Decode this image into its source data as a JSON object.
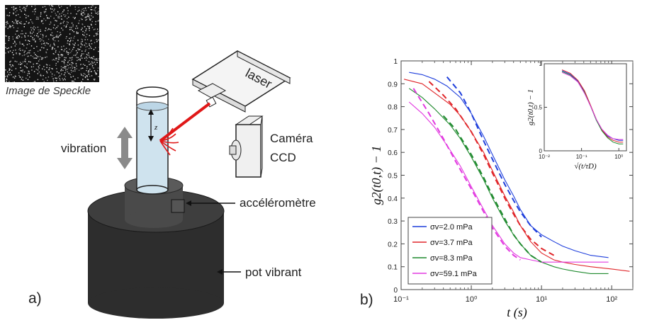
{
  "setup": {
    "speckle_caption": "Image de Speckle",
    "laser_label": "laser",
    "camera_label_line1": "Caméra",
    "camera_label_line2": "CCD",
    "vibration_label": "vibration",
    "z_label": "z",
    "accelerometer_label": "accéléromètre",
    "shaker_label": "pot vibrant",
    "panel_label": "a)"
  },
  "colors": {
    "blue": "#1f3fdc",
    "red": "#e0262a",
    "green": "#1f8a2e",
    "magenta": "#e23ae0"
  },
  "chart_data": {
    "panel_label": "b)",
    "main": {
      "type": "line",
      "xscale": "log",
      "xlim": [
        0.1,
        200
      ],
      "ylim": [
        0,
        1
      ],
      "xlabel": "t (s)",
      "ylabel": "g2(t0,t) − 1",
      "xticks": [
        "10⁻¹",
        "10⁰",
        "10¹",
        "10²"
      ],
      "yticks": [
        "0",
        "0.1",
        "0.2",
        "0.3",
        "0.4",
        "0.5",
        "0.6",
        "0.7",
        "0.8",
        "0.9",
        "1"
      ],
      "legend_position": "bottom-left",
      "series": [
        {
          "name": "σv=2.0 mPa",
          "color": "#1f3fdc",
          "x": [
            0.13,
            0.2,
            0.3,
            0.45,
            0.7,
            1,
            1.5,
            2,
            3,
            4,
            5,
            7,
            10,
            15,
            20,
            30,
            50,
            90
          ],
          "y": [
            0.95,
            0.94,
            0.92,
            0.89,
            0.84,
            0.77,
            0.67,
            0.59,
            0.48,
            0.41,
            0.35,
            0.28,
            0.24,
            0.21,
            0.19,
            0.17,
            0.15,
            0.14
          ]
        },
        {
          "name": "σv=3.7 mPa",
          "color": "#e0262a",
          "x": [
            0.11,
            0.2,
            0.3,
            0.5,
            0.7,
            1,
            1.5,
            2,
            3,
            4,
            5,
            7,
            10,
            15,
            20,
            30,
            50,
            100,
            180
          ],
          "y": [
            0.92,
            0.9,
            0.86,
            0.81,
            0.76,
            0.69,
            0.6,
            0.52,
            0.41,
            0.34,
            0.28,
            0.21,
            0.16,
            0.13,
            0.12,
            0.11,
            0.1,
            0.09,
            0.08
          ]
        },
        {
          "name": "σv=8.3 mPa",
          "color": "#1f8a2e",
          "x": [
            0.13,
            0.2,
            0.3,
            0.5,
            0.7,
            1,
            1.5,
            2,
            3,
            4,
            5,
            7,
            10,
            15,
            20,
            30,
            50,
            90
          ],
          "y": [
            0.88,
            0.84,
            0.79,
            0.72,
            0.66,
            0.58,
            0.48,
            0.4,
            0.3,
            0.24,
            0.2,
            0.15,
            0.12,
            0.1,
            0.09,
            0.08,
            0.07,
            0.07
          ]
        },
        {
          "name": "σv=59.1 mPa",
          "color": "#e23ae0",
          "x": [
            0.13,
            0.2,
            0.3,
            0.5,
            0.7,
            1,
            1.5,
            2,
            3,
            4,
            5,
            7,
            10,
            15,
            20,
            30,
            50,
            90
          ],
          "y": [
            0.82,
            0.77,
            0.71,
            0.61,
            0.54,
            0.45,
            0.35,
            0.28,
            0.2,
            0.16,
            0.14,
            0.13,
            0.12,
            0.12,
            0.12,
            0.12,
            0.12,
            0.12
          ]
        }
      ],
      "fits": [
        {
          "color": "#1f3fdc",
          "x": [
            0.45,
            0.7,
            1,
            1.5,
            2,
            3,
            4,
            5,
            7,
            10
          ],
          "y": [
            0.93,
            0.86,
            0.77,
            0.65,
            0.57,
            0.46,
            0.39,
            0.34,
            0.28,
            0.23
          ]
        },
        {
          "color": "#e0262a",
          "x": [
            0.25,
            0.4,
            0.6,
            1,
            1.5,
            2,
            3,
            4,
            5,
            7,
            10,
            15
          ],
          "y": [
            0.91,
            0.85,
            0.79,
            0.69,
            0.59,
            0.51,
            0.4,
            0.33,
            0.28,
            0.22,
            0.18,
            0.15
          ]
        },
        {
          "color": "#1f8a2e",
          "x": [
            0.4,
            0.6,
            1,
            1.5,
            2,
            3,
            4,
            5,
            7,
            10
          ],
          "y": [
            0.76,
            0.7,
            0.59,
            0.49,
            0.41,
            0.31,
            0.24,
            0.2,
            0.15,
            0.12
          ]
        },
        {
          "color": "#e23ae0",
          "x": [
            0.15,
            0.25,
            0.4,
            0.6,
            1,
            1.5,
            2,
            3,
            4,
            5
          ],
          "y": [
            0.88,
            0.77,
            0.66,
            0.56,
            0.44,
            0.34,
            0.27,
            0.19,
            0.15,
            0.13
          ]
        }
      ]
    },
    "inset": {
      "type": "line",
      "xscale": "log",
      "xlim": [
        0.01,
        1.6
      ],
      "ylim": [
        0,
        1
      ],
      "xlabel": "√(t/τD)",
      "ylabel": "g2(t0,t) − 1",
      "xticks": [
        "10⁻²",
        "10⁻¹",
        "10⁰"
      ],
      "yticks": [
        "0",
        "0.5",
        "1"
      ],
      "series": [
        {
          "color": "#1f3fdc",
          "x": [
            0.03,
            0.05,
            0.08,
            0.12,
            0.18,
            0.25,
            0.35,
            0.5,
            0.7,
            1,
            1.3
          ],
          "y": [
            0.92,
            0.88,
            0.8,
            0.68,
            0.5,
            0.35,
            0.24,
            0.17,
            0.14,
            0.12,
            0.12
          ]
        },
        {
          "color": "#e0262a",
          "x": [
            0.03,
            0.05,
            0.08,
            0.12,
            0.18,
            0.25,
            0.35,
            0.5,
            0.7,
            1,
            1.3
          ],
          "y": [
            0.93,
            0.89,
            0.81,
            0.69,
            0.51,
            0.36,
            0.24,
            0.16,
            0.12,
            0.1,
            0.1
          ]
        },
        {
          "color": "#1f8a2e",
          "x": [
            0.03,
            0.05,
            0.08,
            0.12,
            0.18,
            0.25,
            0.35,
            0.5,
            0.7,
            1,
            1.3
          ],
          "y": [
            0.91,
            0.87,
            0.79,
            0.67,
            0.5,
            0.35,
            0.23,
            0.15,
            0.1,
            0.08,
            0.08
          ]
        },
        {
          "color": "#e23ae0",
          "x": [
            0.03,
            0.05,
            0.08,
            0.12,
            0.18,
            0.25,
            0.35,
            0.5,
            0.7,
            1,
            1.3
          ],
          "y": [
            0.9,
            0.86,
            0.79,
            0.66,
            0.5,
            0.36,
            0.25,
            0.18,
            0.14,
            0.13,
            0.13
          ]
        }
      ]
    }
  }
}
